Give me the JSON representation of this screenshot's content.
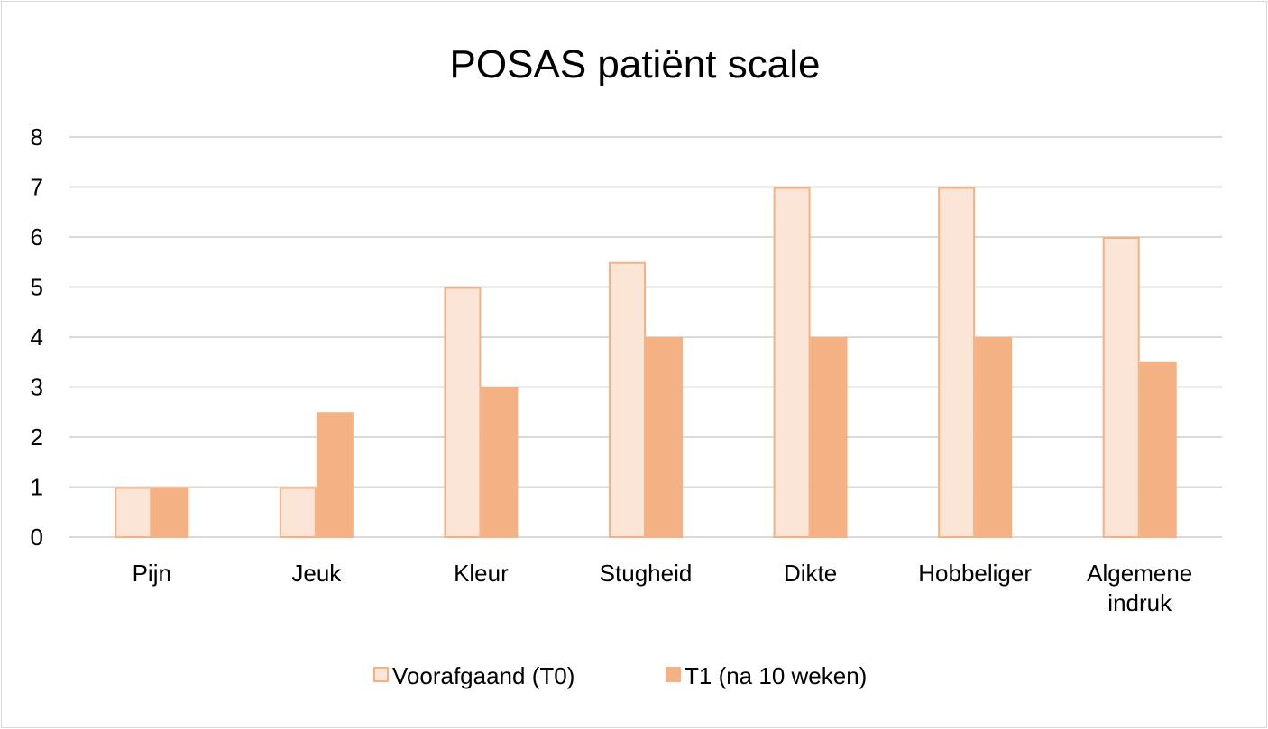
{
  "chart_data": {
    "type": "bar",
    "title": "POSAS patiënt scale",
    "xlabel": "",
    "ylabel": "",
    "ylim": [
      0,
      8
    ],
    "yticks": [
      "0",
      "1",
      "2",
      "3",
      "4",
      "5",
      "6",
      "7",
      "8"
    ],
    "grid": true,
    "legend_position": "bottom",
    "categories": [
      [
        "Pijn"
      ],
      [
        "Jeuk"
      ],
      [
        "Kleur"
      ],
      [
        "Stugheid"
      ],
      [
        "Dikte"
      ],
      [
        "Hobbeliger"
      ],
      [
        "Algemene",
        "indruk"
      ]
    ],
    "series": [
      {
        "name": "Voorafgaand (T0)",
        "values": [
          1,
          1,
          5,
          5.5,
          7,
          7,
          6
        ],
        "fill": "#fbe5d6",
        "stroke": "#f4b183"
      },
      {
        "name": "T1 (na 10 weken)",
        "values": [
          1,
          2.5,
          3,
          4,
          4,
          4,
          3.5
        ],
        "fill": "#f4b183",
        "stroke": "#f4b183"
      }
    ]
  }
}
